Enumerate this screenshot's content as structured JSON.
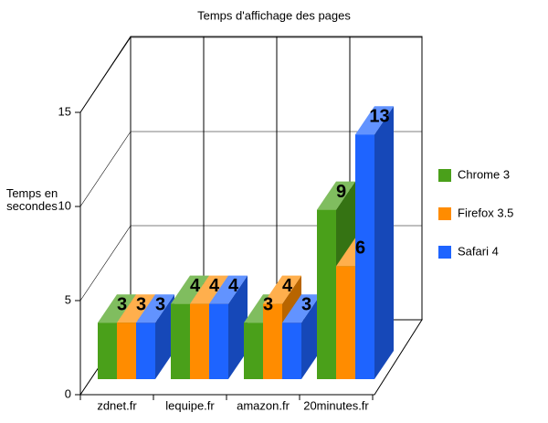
{
  "chart_data": {
    "type": "bar3d",
    "title": "Temps d'affichage des pages",
    "ylabel": "Temps en secondes",
    "categories": [
      "zdnet.fr",
      "lequipe.fr",
      "amazon.fr",
      "20minutes.fr"
    ],
    "series": [
      {
        "name": "Chrome 3",
        "color": "#4aa01a",
        "values": [
          3,
          4,
          3,
          9
        ]
      },
      {
        "name": "Firefox 3.5",
        "color": "#ff8c00",
        "values": [
          3,
          4,
          4,
          6
        ]
      },
      {
        "name": "Safari 4",
        "color": "#1e64ff",
        "values": [
          3,
          4,
          3,
          13
        ]
      }
    ],
    "ylim": [
      0,
      15
    ],
    "yticks": [
      0,
      5,
      10,
      15
    ],
    "grid": true,
    "legend": "right"
  }
}
